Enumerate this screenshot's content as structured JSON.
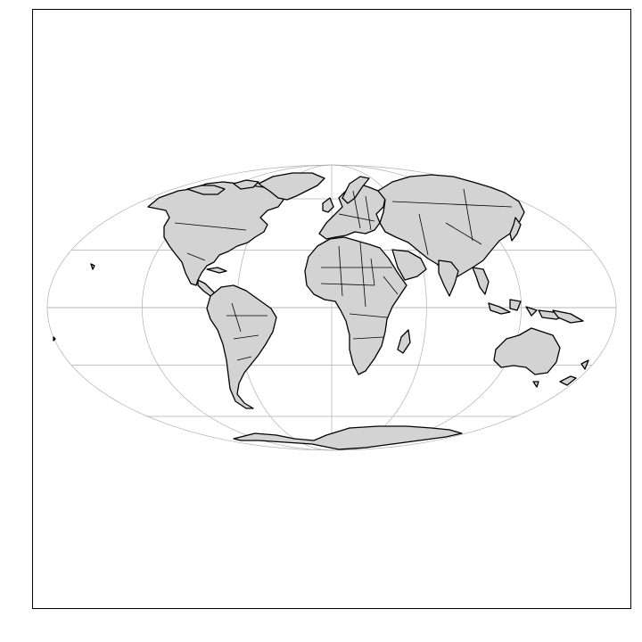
{
  "map": {
    "projection": "Mollweide",
    "land_color": "#d3d3d3",
    "coastline_color": "#000000",
    "graticule_color": "#b0b0b0",
    "background": "#ffffff",
    "graticule": {
      "meridians": [
        -180,
        -120,
        -60,
        0,
        60,
        120,
        180
      ],
      "parallels": [
        -60,
        -30,
        0,
        30,
        60
      ]
    },
    "features": [
      "coastlines",
      "country-borders",
      "graticule"
    ]
  }
}
